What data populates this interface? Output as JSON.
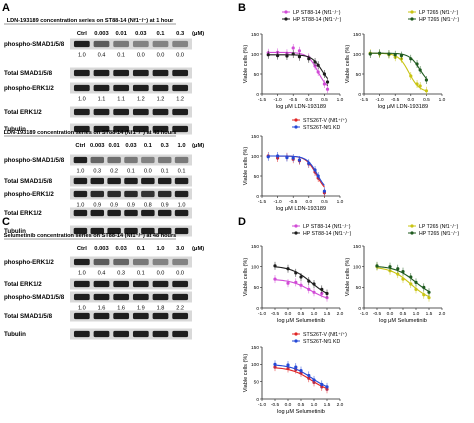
{
  "panels": {
    "A": {
      "letter": "A",
      "blots": [
        {
          "title": "LDN-193189 concentration series on ST88-14 (Nf1⁻/⁻) at 1 hour",
          "lanes": [
            "Ctrl",
            "0.003",
            "0.01",
            "0.03",
            "0.1",
            "0.3"
          ],
          "unit": "(μM)",
          "rows": [
            {
              "label": "phospho-SMAD1/5/8",
              "quant": [
                "1.0",
                "0.4",
                "0.1",
                "0.0",
                "0.0",
                "0.0"
              ]
            },
            {
              "label": "Total SMAD1/5/8",
              "quant": []
            },
            {
              "label": "phospho-ERK1/2",
              "quant": [
                "1.0",
                "1.1",
                "1.1",
                "1.2",
                "1.2",
                "1.2"
              ]
            },
            {
              "label": "Total ERK1/2",
              "quant": []
            },
            {
              "label": "Tubulin",
              "quant": []
            }
          ]
        },
        {
          "title": "LDN-193189 concentration series on ST88-14 (Nf1⁻/⁻) at 48 hours",
          "lanes": [
            "Ctrl",
            "0.003",
            "0.01",
            "0.03",
            "0.1",
            "0.3",
            "1.0"
          ],
          "unit": "(μM)",
          "rows": [
            {
              "label": "phospho-SMAD1/5/8",
              "quant": [
                "1.0",
                "0.3",
                "0.2",
                "0.1",
                "0.0",
                "0.1",
                "0.1"
              ]
            },
            {
              "label": "Total SMAD1/5/8",
              "quant": []
            },
            {
              "label": "phospho-ERK1/2",
              "quant": [
                "1.0",
                "0.9",
                "0.9",
                "0.9",
                "0.8",
                "0.9",
                "1.0"
              ]
            },
            {
              "label": "Total ERK1/2",
              "quant": []
            },
            {
              "label": "Tubulin",
              "quant": []
            }
          ]
        }
      ]
    },
    "C": {
      "letter": "C",
      "blots": [
        {
          "title": "Selumetinib concentration series on ST88-14 (Nf1⁻/⁻) at 48 hours",
          "lanes": [
            "Ctrl",
            "0.003",
            "0.03",
            "0.1",
            "1.0",
            "3.0"
          ],
          "unit": "(μM)",
          "rows": [
            {
              "label": "phospho-ERK1/2",
              "quant": [
                "1.0",
                "0.4",
                "0.3",
                "0.1",
                "0.0",
                "0.0"
              ]
            },
            {
              "label": "Total ERK1/2",
              "quant": []
            },
            {
              "label": "phospho-SMAD1/5/8",
              "quant": [
                "1.0",
                "1.6",
                "1.6",
                "1.9",
                "1.8",
                "2.2"
              ]
            },
            {
              "label": "Total SMAD1/5/8",
              "quant": []
            },
            {
              "label": "Tubulin",
              "quant": []
            }
          ]
        }
      ]
    },
    "B": {
      "letter": "B"
    },
    "D": {
      "letter": "D"
    }
  },
  "colors": {
    "purple": "#d14bd6",
    "black": "#1c1c1c",
    "yellow": "#c9c413",
    "green": "#1e5a1e",
    "red": "#e02424",
    "blue": "#2448d6"
  },
  "chart_data": [
    {
      "type": "scatter",
      "ylabel": "Viable cells (%)",
      "xlabel": "log μM LDN-193189",
      "xlim": [
        -1.5,
        1.0
      ],
      "ylim": [
        0,
        150
      ],
      "xticks": [
        "-1.5",
        "-1.0",
        "-0.5",
        "0.0",
        "0.5",
        "1.0"
      ],
      "yticks": [
        "0",
        "50",
        "100",
        "150"
      ],
      "series": [
        {
          "name": "LP ST88-14 (Nf1⁻/⁻)",
          "color": "#d14bd6",
          "x": [
            -1.3,
            -1.0,
            -0.7,
            -0.5,
            -0.3,
            0.0,
            0.2,
            0.3,
            0.5,
            0.6
          ],
          "y": [
            103,
            104,
            102,
            115,
            108,
            92,
            70,
            55,
            25,
            12
          ]
        },
        {
          "name": "HP ST88-14 (Nf1⁻/⁻)",
          "color": "#1c1c1c",
          "x": [
            -1.3,
            -1.0,
            -0.7,
            -0.5,
            -0.3,
            0.0,
            0.2,
            0.3,
            0.5,
            0.6
          ],
          "y": [
            98,
            96,
            95,
            100,
            93,
            88,
            80,
            72,
            50,
            30
          ]
        }
      ]
    },
    {
      "type": "scatter",
      "ylabel": "Viable cells (%)",
      "xlabel": "log μM LDN-193189",
      "xlim": [
        -1.5,
        1.0
      ],
      "ylim": [
        0,
        150
      ],
      "xticks": [
        "-1.5",
        "-1.0",
        "-0.5",
        "0.0",
        "0.5",
        "1.0"
      ],
      "yticks": [
        "0",
        "50",
        "100",
        "150"
      ],
      "series": [
        {
          "name": "LP T265 (Nf1⁻/⁻)",
          "color": "#c9c413",
          "x": [
            -1.3,
            -1.0,
            -0.7,
            -0.5,
            -0.3,
            0.0,
            0.2,
            0.3,
            0.5
          ],
          "y": [
            102,
            100,
            98,
            92,
            88,
            45,
            25,
            20,
            8
          ]
        },
        {
          "name": "HP T265 (Nf1⁻/⁻)",
          "color": "#1e5a1e",
          "x": [
            -1.3,
            -1.0,
            -0.7,
            -0.5,
            -0.3,
            0.0,
            0.2,
            0.3,
            0.5
          ],
          "y": [
            100,
            102,
            100,
            98,
            96,
            88,
            75,
            60,
            35
          ]
        }
      ]
    },
    {
      "type": "scatter",
      "ylabel": "Viable cells (%)",
      "xlabel": "log μM LDN-193189",
      "xlim": [
        -1.5,
        1.0
      ],
      "ylim": [
        0,
        150
      ],
      "xticks": [
        "-1.5",
        "-1.0",
        "-0.5",
        "0.0",
        "0.5",
        "1.0"
      ],
      "yticks": [
        "0",
        "50",
        "100",
        "150"
      ],
      "series": [
        {
          "name": "STS26T-V (Nf1⁺/⁺)",
          "color": "#e02424",
          "x": [
            -1.3,
            -1.0,
            -0.7,
            -0.5,
            -0.3,
            0.0,
            0.2,
            0.3,
            0.5
          ],
          "y": [
            100,
            95,
            98,
            92,
            88,
            80,
            60,
            45,
            8
          ]
        },
        {
          "name": "STS26T-Nf1 KD",
          "color": "#2448d6",
          "x": [
            -1.3,
            -1.0,
            -0.7,
            -0.5,
            -0.3,
            0.0,
            0.2,
            0.3,
            0.5
          ],
          "y": [
            98,
            100,
            96,
            95,
            90,
            82,
            65,
            50,
            12
          ]
        }
      ]
    },
    {
      "type": "scatter",
      "ylabel": "Viable cells (%)",
      "xlabel": "log μM Selumetinib",
      "xlim": [
        -1.0,
        2.0
      ],
      "ylim": [
        0,
        150
      ],
      "xticks": [
        "-1.0",
        "-0.5",
        "0.0",
        "0.5",
        "1.0",
        "1.5",
        "2.0"
      ],
      "yticks": [
        "0",
        "50",
        "100",
        "150"
      ],
      "series": [
        {
          "name": "LP ST88-14 (Nf1⁻/⁻)",
          "color": "#d14bd6",
          "x": [
            -0.5,
            0.0,
            0.3,
            0.5,
            0.8,
            1.0,
            1.3,
            1.5
          ],
          "y": [
            70,
            60,
            62,
            55,
            45,
            38,
            35,
            25
          ]
        },
        {
          "name": "HP ST88-14 (Nf1⁻/⁻)",
          "color": "#1c1c1c",
          "x": [
            -0.5,
            0.0,
            0.3,
            0.5,
            0.8,
            1.0,
            1.3,
            1.5
          ],
          "y": [
            102,
            95,
            85,
            75,
            65,
            58,
            45,
            35
          ]
        }
      ]
    },
    {
      "type": "scatter",
      "ylabel": "Viable cells (%)",
      "xlabel": "log μM Selumetinib",
      "xlim": [
        -1.0,
        2.0
      ],
      "ylim": [
        0,
        150
      ],
      "xticks": [
        "-1.0",
        "-0.5",
        "0.0",
        "0.5",
        "1.0",
        "1.5",
        "2.0"
      ],
      "yticks": [
        "0",
        "50",
        "100",
        "150"
      ],
      "series": [
        {
          "name": "LP T265 (Nf1⁻/⁻)",
          "color": "#c9c413",
          "x": [
            -0.5,
            0.0,
            0.3,
            0.5,
            0.8,
            1.0,
            1.3,
            1.5
          ],
          "y": [
            100,
            90,
            82,
            70,
            58,
            45,
            32,
            25
          ]
        },
        {
          "name": "HP T265 (Nf1⁻/⁻)",
          "color": "#1e5a1e",
          "x": [
            -0.5,
            0.0,
            0.3,
            0.5,
            0.8,
            1.0,
            1.3,
            1.5
          ],
          "y": [
            102,
            100,
            95,
            88,
            75,
            62,
            50,
            38
          ]
        }
      ]
    },
    {
      "type": "scatter",
      "ylabel": "Viable cells (%)",
      "xlabel": "log μM Selumetinib",
      "xlim": [
        -1.0,
        2.0
      ],
      "ylim": [
        0,
        150
      ],
      "xticks": [
        "-1.0",
        "-0.5",
        "0.0",
        "0.5",
        "1.0",
        "1.5",
        "2.0"
      ],
      "yticks": [
        "0",
        "50",
        "100",
        "150"
      ],
      "series": [
        {
          "name": "STS26T-V (Nf1⁺/⁺)",
          "color": "#e02424",
          "x": [
            -0.5,
            0.0,
            0.3,
            0.5,
            0.8,
            1.0,
            1.3,
            1.5
          ],
          "y": [
            92,
            88,
            85,
            75,
            60,
            48,
            35,
            28
          ]
        },
        {
          "name": "STS26T-Nf1 KD",
          "color": "#2448d6",
          "x": [
            -0.5,
            0.0,
            0.3,
            0.5,
            0.8,
            1.0,
            1.3,
            1.5
          ],
          "y": [
            100,
            98,
            92,
            82,
            68,
            55,
            42,
            35
          ]
        }
      ]
    }
  ]
}
